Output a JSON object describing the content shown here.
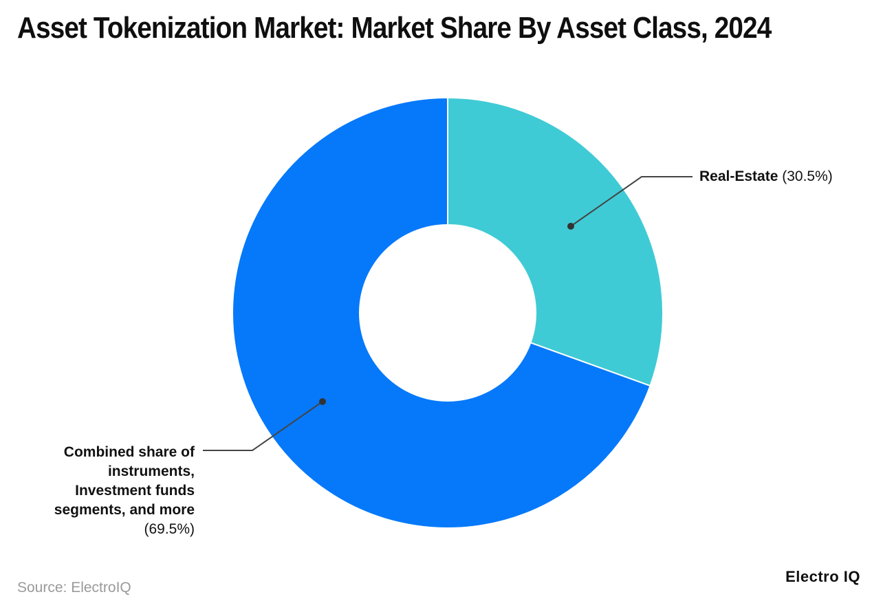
{
  "title": "Asset Tokenization Market: Market Share By Asset Class, 2024",
  "source_note": "Source: ElectroIQ",
  "brand": "Electro IQ",
  "colors": {
    "blue": "#0679FA",
    "teal": "#3FCBD5",
    "leader": "#444444",
    "dot": "#333333",
    "title_text": "#0f0f0f",
    "source_text": "#9a9a9a"
  },
  "chart_data": {
    "type": "pie",
    "subtype": "donut",
    "title": "Asset Tokenization Market: Market Share By Asset Class, 2024",
    "unit": "%",
    "start_angle_deg": 0,
    "direction": "clockwise",
    "inner_radius_ratio": 0.41,
    "legend_position": "callout-labels",
    "slices": [
      {
        "label": "Real-Estate",
        "value": 30.5,
        "color": "#3FCBD5"
      },
      {
        "label": "Combined share of instruments, Investment funds segments, and more",
        "value": 69.5,
        "color": "#0679FA"
      }
    ]
  },
  "annotations": {
    "real_estate": {
      "label_bold": "Real-Estate",
      "label_value": "(30.5%)"
    },
    "combined": {
      "line1": "Combined share of",
      "line2": "instruments,",
      "line3": "Investment funds",
      "line4": "segments, and more",
      "value_line": "(69.5%)"
    }
  }
}
